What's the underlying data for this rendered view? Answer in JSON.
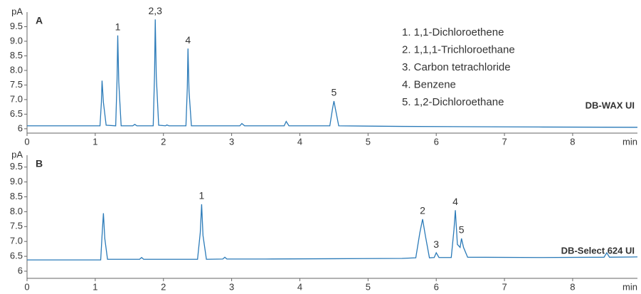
{
  "chart_data": [
    {
      "type": "line",
      "panel_label": "A",
      "column_name": "DB-WAX UI",
      "ylabel": "pA",
      "xlabel": "min",
      "x": [
        0,
        0.5,
        1.0,
        1.07,
        1.09,
        1.1,
        1.12,
        1.16,
        1.3,
        1.32,
        1.33,
        1.345,
        1.38,
        1.55,
        1.58,
        1.61,
        1.85,
        1.87,
        1.88,
        1.895,
        1.93,
        2.03,
        2.05,
        2.08,
        2.33,
        2.35,
        2.36,
        2.375,
        2.41,
        3.12,
        3.15,
        3.19,
        3.77,
        3.8,
        3.84,
        4.44,
        4.48,
        4.5,
        4.52,
        4.57,
        5.5,
        6.5,
        7.5,
        8.95
      ],
      "series": [
        {
          "color": "#2a7ab8",
          "values": [
            6.1,
            6.1,
            6.1,
            6.1,
            6.9,
            7.65,
            6.9,
            6.12,
            6.1,
            7.7,
            9.2,
            7.6,
            6.1,
            6.1,
            6.15,
            6.1,
            6.1,
            7.9,
            9.75,
            7.8,
            6.12,
            6.1,
            6.13,
            6.1,
            6.1,
            7.4,
            8.75,
            7.3,
            6.1,
            6.1,
            6.18,
            6.1,
            6.1,
            6.25,
            6.1,
            6.1,
            6.7,
            6.95,
            6.7,
            6.1,
            6.08,
            6.07,
            6.06,
            6.05
          ]
        }
      ],
      "xlim": [
        0,
        8.95
      ],
      "ylim": [
        5.85,
        10.0
      ],
      "xticks": [
        0,
        1,
        2,
        3,
        4,
        5,
        6,
        7,
        8
      ],
      "yticks": [
        6,
        6.5,
        {
          "value": 7,
          "label": "7.0"
        },
        7.5,
        {
          "value": 8,
          "label": "8.0"
        },
        8.5,
        {
          "value": 9,
          "label": "9.0"
        },
        9.5
      ],
      "peak_labels": [
        {
          "label": "1",
          "x": 1.33,
          "y": 9.2
        },
        {
          "label": "2,3",
          "x": 1.88,
          "y": 9.75
        },
        {
          "label": "4",
          "x": 2.36,
          "y": 8.75
        },
        {
          "label": "5",
          "x": 4.5,
          "y": 6.95
        }
      ]
    },
    {
      "type": "line",
      "panel_label": "B",
      "column_name": "DB-Select 624 UI",
      "ylabel": "pA",
      "xlabel": "min",
      "x": [
        0,
        0.5,
        1.08,
        1.1,
        1.12,
        1.14,
        1.18,
        1.65,
        1.68,
        1.71,
        2.5,
        2.54,
        2.56,
        2.58,
        2.63,
        2.87,
        2.9,
        2.93,
        3.5,
        4.5,
        5.5,
        5.7,
        5.76,
        5.8,
        5.84,
        5.9,
        5.97,
        6.0,
        6.04,
        6.22,
        6.26,
        6.28,
        6.31,
        6.35,
        6.37,
        6.4,
        6.46,
        7.5,
        8.46,
        8.5,
        8.54,
        8.95
      ],
      "series": [
        {
          "color": "#2a7ab8",
          "values": [
            6.38,
            6.38,
            6.38,
            7.2,
            7.95,
            7.1,
            6.4,
            6.4,
            6.46,
            6.4,
            6.4,
            7.3,
            8.25,
            7.2,
            6.4,
            6.41,
            6.47,
            6.41,
            6.41,
            6.42,
            6.43,
            6.45,
            7.3,
            7.75,
            7.2,
            6.45,
            6.46,
            6.62,
            6.46,
            6.46,
            7.4,
            8.05,
            6.9,
            6.8,
            7.1,
            6.8,
            6.47,
            6.46,
            6.47,
            6.62,
            6.47,
            6.48
          ]
        }
      ],
      "xlim": [
        0,
        8.95
      ],
      "ylim": [
        5.76,
        9.9
      ],
      "xticks": [
        0,
        1,
        2,
        3,
        4,
        5,
        6,
        7,
        8
      ],
      "yticks": [
        6,
        6.5,
        {
          "value": 7,
          "label": "7.0"
        },
        7.5,
        {
          "value": 8,
          "label": "8.0"
        },
        8.5,
        {
          "value": 9,
          "label": "9.0"
        },
        9.5
      ],
      "peak_labels": [
        {
          "label": "1",
          "x": 2.56,
          "y": 8.25
        },
        {
          "label": "2",
          "x": 5.8,
          "y": 7.75
        },
        {
          "label": "3",
          "x": 6.0,
          "y": 6.62
        },
        {
          "label": "4",
          "x": 6.28,
          "y": 8.05
        },
        {
          "label": "5",
          "x": 6.37,
          "y": 7.1
        }
      ]
    }
  ],
  "compound_list": [
    "1. 1,1-Dichloroethene",
    "2. 1,1,1-Trichloroethane",
    "3. Carbon tetrachloride",
    "4. Benzene",
    "5. 1,2-Dichloroethane"
  ]
}
